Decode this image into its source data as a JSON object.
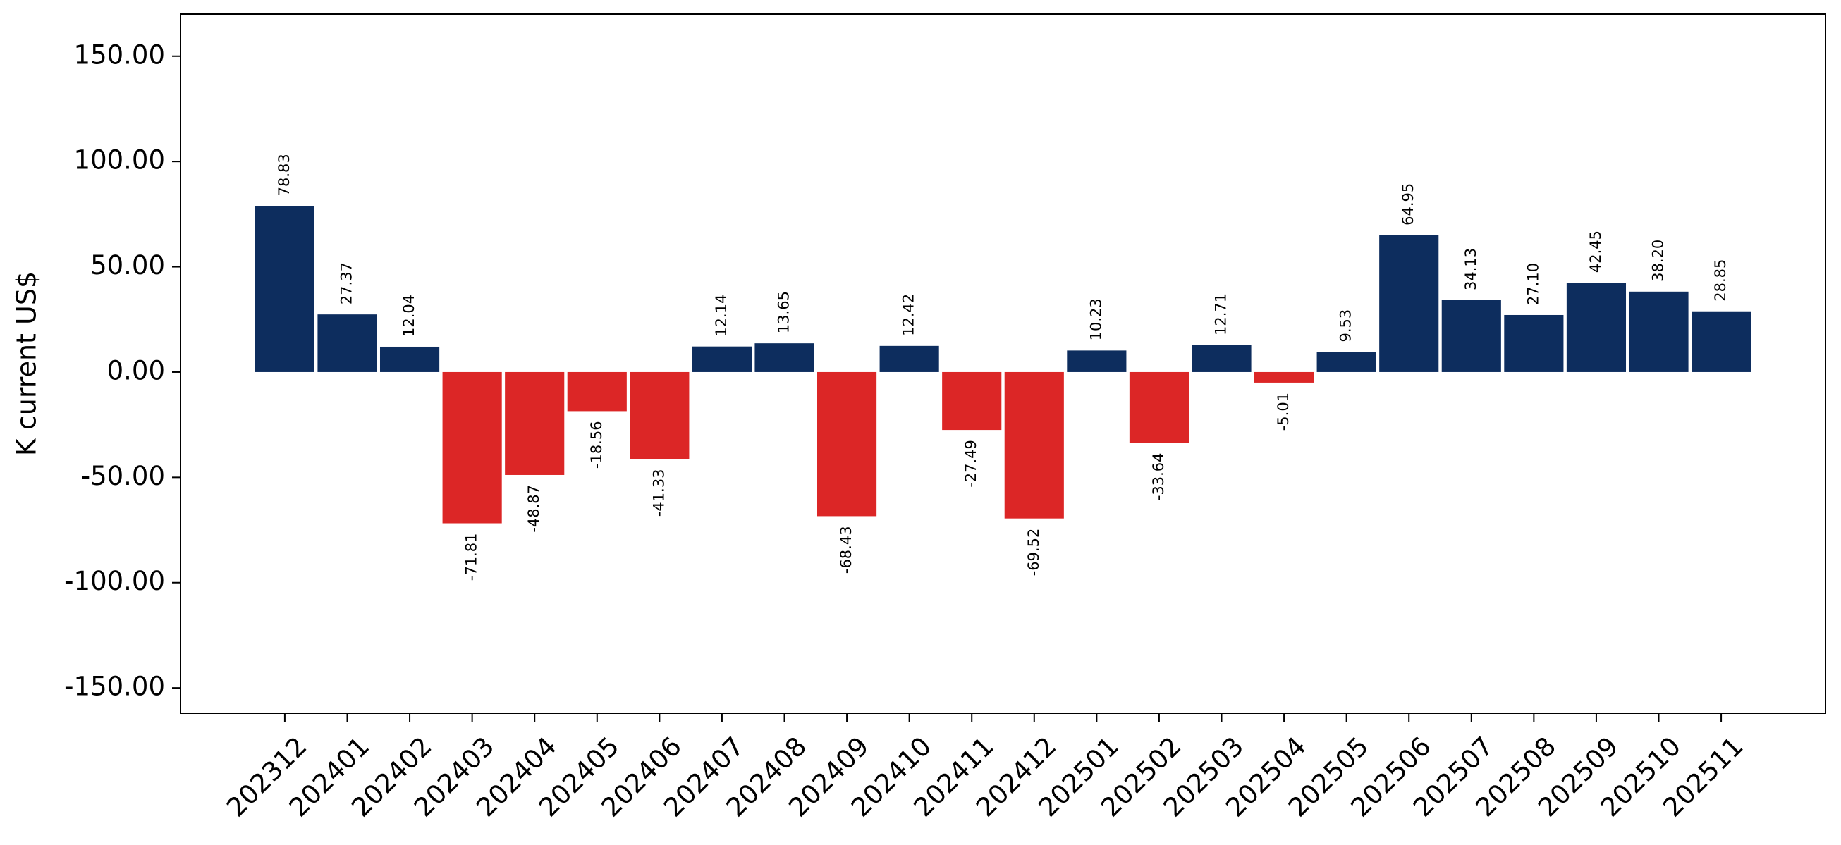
{
  "chart_data": {
    "type": "bar",
    "y_label": "K current US$",
    "categories": [
      "202312",
      "202401",
      "202402",
      "202403",
      "202404",
      "202405",
      "202406",
      "202407",
      "202408",
      "202409",
      "202410",
      "202411",
      "202412",
      "202501",
      "202502",
      "202503",
      "202504",
      "202505",
      "202506",
      "202507",
      "202508",
      "202509",
      "202510",
      "202511"
    ],
    "values": [
      78.83,
      27.37,
      12.04,
      -71.81,
      -48.87,
      -18.56,
      -41.33,
      12.14,
      13.65,
      -68.43,
      12.42,
      -27.49,
      -69.52,
      10.23,
      -33.64,
      12.71,
      -5.01,
      9.53,
      64.95,
      34.13,
      27.1,
      42.45,
      38.2,
      28.85
    ],
    "value_labels": [
      "78.83",
      "27.37",
      "12.04",
      "-71.81",
      "-48.87",
      "-18.56",
      "-41.33",
      "12.14",
      "13.65",
      "-68.43",
      "12.42",
      "-27.49",
      "-69.52",
      "10.23",
      "-33.64",
      "12.71",
      "-5.01",
      "9.53",
      "64.95",
      "34.13",
      "27.10",
      "42.45",
      "38.20",
      "28.85"
    ],
    "color_positive": "#0d2d5e",
    "color_negative": "#dc2626",
    "ylim": [
      -162,
      170
    ],
    "yticks": [
      {
        "value": -150,
        "label": "-150.00"
      },
      {
        "value": -100,
        "label": "-100.00"
      },
      {
        "value": -50,
        "label": "-50.00"
      },
      {
        "value": 0,
        "label": "0.00"
      },
      {
        "value": 50,
        "label": "50.00"
      },
      {
        "value": 100,
        "label": "100.00"
      },
      {
        "value": 150,
        "label": "150.00"
      }
    ],
    "grid": false
  }
}
